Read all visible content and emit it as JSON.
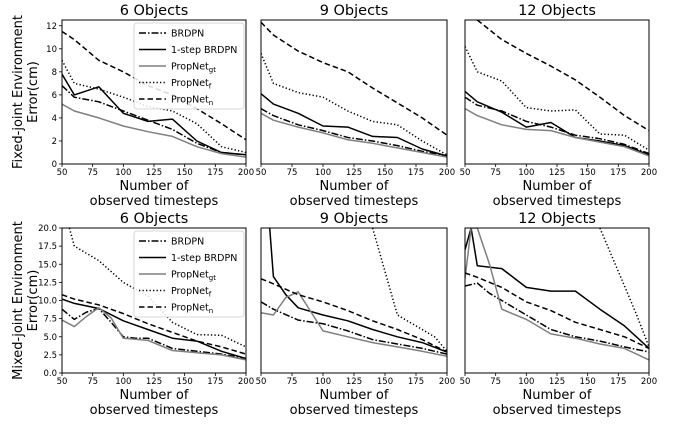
{
  "chart_data": [
    {
      "type": "line",
      "title": "6 Objects",
      "xlabel": "Number of\nobserved timesteps",
      "ylabel": "Fixed-joint Environment\nError(cm)",
      "xlim": [
        50,
        200
      ],
      "ylim": [
        0,
        12.5
      ],
      "xticks": [
        "50",
        "75",
        "100",
        "125",
        "150",
        "175",
        "200"
      ],
      "yticks": [
        "0",
        "2",
        "4",
        "6",
        "8",
        "10",
        "12"
      ],
      "legend": "top-right",
      "series": [
        {
          "name": "BRDPN",
          "x": [
            50,
            60,
            80,
            100,
            120,
            140,
            160,
            180,
            200
          ],
          "y": [
            6.8,
            5.8,
            5.4,
            4.6,
            3.8,
            3.0,
            1.8,
            1.0,
            0.8
          ]
        },
        {
          "name": "1-step BRDPN",
          "x": [
            50,
            60,
            80,
            100,
            120,
            140,
            160,
            180,
            200
          ],
          "y": [
            7.8,
            6.0,
            6.7,
            4.4,
            3.7,
            3.9,
            2.0,
            1.0,
            0.8
          ]
        },
        {
          "name": "PropNet_gt",
          "x": [
            50,
            60,
            80,
            100,
            120,
            140,
            160,
            180,
            200
          ],
          "y": [
            5.2,
            4.6,
            4.0,
            3.3,
            2.8,
            2.4,
            1.5,
            0.9,
            0.6
          ]
        },
        {
          "name": "PropNet_f",
          "x": [
            50,
            60,
            80,
            100,
            120,
            140,
            160,
            180,
            200
          ],
          "y": [
            9.0,
            7.0,
            6.5,
            5.8,
            5.0,
            4.6,
            3.5,
            1.5,
            1.0
          ]
        },
        {
          "name": "PropNet_n",
          "x": [
            50,
            60,
            80,
            100,
            120,
            140,
            160,
            180,
            200
          ],
          "y": [
            11.5,
            10.8,
            9.0,
            8.0,
            6.8,
            6.0,
            4.8,
            3.5,
            2.1
          ]
        }
      ]
    },
    {
      "type": "line",
      "title": "9 Objects",
      "xlabel": "Number of\nobserved timesteps",
      "xlim": [
        50,
        200
      ],
      "ylim": [
        0,
        12.5
      ],
      "xticks": [
        "50",
        "75",
        "100",
        "125",
        "150",
        "175",
        "200"
      ],
      "series": [
        {
          "name": "BRDPN",
          "x": [
            50,
            60,
            80,
            100,
            120,
            140,
            160,
            180,
            200
          ],
          "y": [
            4.8,
            4.2,
            3.4,
            2.9,
            2.3,
            2.0,
            1.6,
            1.1,
            0.7
          ]
        },
        {
          "name": "1-step BRDPN",
          "x": [
            50,
            60,
            80,
            100,
            120,
            140,
            160,
            180,
            200
          ],
          "y": [
            6.1,
            5.2,
            4.4,
            3.3,
            3.2,
            2.4,
            2.3,
            1.3,
            0.7
          ]
        },
        {
          "name": "PropNet_gt",
          "x": [
            50,
            60,
            80,
            100,
            120,
            140,
            160,
            180,
            200
          ],
          "y": [
            4.4,
            3.8,
            3.2,
            2.7,
            2.1,
            1.8,
            1.4,
            1.0,
            0.6
          ]
        },
        {
          "name": "PropNet_f",
          "x": [
            50,
            60,
            80,
            100,
            120,
            140,
            160,
            180,
            200
          ],
          "y": [
            9.6,
            7.0,
            6.2,
            5.8,
            4.6,
            3.7,
            3.4,
            2.0,
            0.8
          ]
        },
        {
          "name": "PropNet_n",
          "x": [
            50,
            60,
            80,
            100,
            120,
            140,
            160,
            180,
            200
          ],
          "y": [
            12.3,
            11.2,
            9.8,
            8.8,
            8.0,
            6.6,
            5.3,
            4.0,
            2.5
          ]
        }
      ]
    },
    {
      "type": "line",
      "title": "12 Objects",
      "xlabel": "Number of\nobserved timesteps",
      "xlim": [
        50,
        200
      ],
      "ylim": [
        0,
        12.5
      ],
      "xticks": [
        "50",
        "75",
        "100",
        "125",
        "150",
        "175",
        "200"
      ],
      "series": [
        {
          "name": "BRDPN",
          "x": [
            50,
            60,
            80,
            100,
            120,
            140,
            160,
            180,
            200
          ],
          "y": [
            5.8,
            5.1,
            4.6,
            3.7,
            3.2,
            2.5,
            2.2,
            1.7,
            0.9
          ]
        },
        {
          "name": "1-step BRDPN",
          "x": [
            50,
            60,
            80,
            100,
            120,
            140,
            160,
            180,
            200
          ],
          "y": [
            6.3,
            5.4,
            4.5,
            3.2,
            3.6,
            2.3,
            2.0,
            1.6,
            0.8
          ]
        },
        {
          "name": "PropNet_gt",
          "x": [
            50,
            60,
            80,
            100,
            120,
            140,
            160,
            180,
            200
          ],
          "y": [
            4.8,
            4.2,
            3.4,
            3.0,
            2.9,
            2.3,
            1.9,
            1.5,
            0.7
          ]
        },
        {
          "name": "PropNet_f",
          "x": [
            50,
            60,
            80,
            100,
            120,
            140,
            160,
            180,
            200
          ],
          "y": [
            10.2,
            8.0,
            7.2,
            4.9,
            4.6,
            4.7,
            2.6,
            2.5,
            1.2
          ]
        },
        {
          "name": "PropNet_n",
          "x": [
            60,
            80,
            100,
            120,
            140,
            160,
            180,
            200
          ],
          "y": [
            12.5,
            10.8,
            9.6,
            8.5,
            7.3,
            5.8,
            4.2,
            2.9
          ]
        }
      ]
    },
    {
      "type": "line",
      "title": "6 Objects",
      "xlabel": "Number of\nobserved timesteps",
      "ylabel": "Mixed-joint Environment\nError(cm)",
      "xlim": [
        50,
        200
      ],
      "ylim": [
        0,
        20
      ],
      "xticks": [
        "50",
        "75",
        "100",
        "125",
        "150",
        "175",
        "200"
      ],
      "yticks": [
        "0.0",
        "2.5",
        "5.0",
        "7.5",
        "10.0",
        "12.5",
        "15.0",
        "17.5",
        "20.0"
      ],
      "legend": "top-right",
      "series": [
        {
          "name": "BRDPN",
          "x": [
            50,
            60,
            70,
            80,
            90,
            100,
            110,
            120,
            140,
            160,
            180,
            200
          ],
          "y": [
            8.8,
            7.4,
            8.4,
            8.9,
            7.0,
            5.0,
            4.8,
            4.8,
            3.4,
            3.0,
            2.6,
            2.0
          ]
        },
        {
          "name": "1-step BRDPN",
          "x": [
            50,
            60,
            80,
            100,
            120,
            140,
            160,
            180,
            200
          ],
          "y": [
            10.2,
            9.6,
            8.9,
            7.2,
            6.0,
            4.8,
            4.4,
            3.0,
            2.0
          ]
        },
        {
          "name": "PropNet_gt",
          "x": [
            50,
            60,
            70,
            80,
            90,
            100,
            120,
            140,
            160,
            180,
            200
          ],
          "y": [
            7.3,
            6.4,
            7.8,
            9.0,
            7.6,
            4.8,
            4.5,
            3.1,
            2.8,
            2.5,
            1.8
          ]
        },
        {
          "name": "PropNet_f",
          "x": [
            56,
            60,
            80,
            100,
            120,
            140,
            160,
            180,
            200
          ],
          "y": [
            20.0,
            17.5,
            15.5,
            12.5,
            10.6,
            7.0,
            5.3,
            5.2,
            3.6
          ]
        },
        {
          "name": "PropNet_n",
          "x": [
            50,
            60,
            80,
            100,
            120,
            140,
            160,
            180,
            200
          ],
          "y": [
            10.8,
            10.2,
            9.4,
            8.2,
            6.8,
            5.6,
            4.4,
            3.6,
            2.6
          ]
        }
      ]
    },
    {
      "type": "line",
      "title": "9 Objects",
      "xlabel": "Number of\nobserved timesteps",
      "xlim": [
        50,
        200
      ],
      "ylim": [
        0,
        20
      ],
      "xticks": [
        "50",
        "75",
        "100",
        "125",
        "150",
        "175",
        "200"
      ],
      "series": [
        {
          "name": "BRDPN",
          "x": [
            50,
            60,
            80,
            100,
            120,
            140,
            160,
            180,
            200
          ],
          "y": [
            9.8,
            8.8,
            7.3,
            6.8,
            5.8,
            4.6,
            4.0,
            3.4,
            2.6
          ]
        },
        {
          "name": "1-step BRDPN",
          "x": [
            57,
            60,
            70,
            80,
            100,
            120,
            140,
            160,
            180,
            200
          ],
          "y": [
            20.0,
            13.3,
            10.8,
            9.0,
            8.0,
            7.2,
            6.0,
            5.0,
            4.2,
            2.9
          ]
        },
        {
          "name": "PropNet_gt",
          "x": [
            50,
            60,
            70,
            80,
            90,
            100,
            120,
            140,
            160,
            180,
            200
          ],
          "y": [
            8.3,
            8.0,
            10.4,
            11.2,
            8.5,
            5.8,
            5.0,
            4.2,
            3.6,
            3.0,
            2.3
          ]
        },
        {
          "name": "PropNet_f",
          "x": [
            140,
            150,
            160,
            170,
            180,
            190,
            200
          ],
          "y": [
            20.0,
            14.0,
            8.0,
            7.0,
            6.0,
            5.0,
            3.0
          ]
        },
        {
          "name": "PropNet_n",
          "x": [
            50,
            60,
            80,
            100,
            120,
            140,
            160,
            180,
            200
          ],
          "y": [
            13.0,
            12.3,
            10.8,
            9.8,
            8.6,
            7.2,
            6.0,
            4.6,
            2.9
          ]
        }
      ]
    },
    {
      "type": "line",
      "title": "12 Objects",
      "xlabel": "Number of\nobserved timesteps",
      "xlim": [
        50,
        200
      ],
      "ylim": [
        0,
        20
      ],
      "xticks": [
        "50",
        "75",
        "100",
        "125",
        "150",
        "175",
        "200"
      ],
      "series": [
        {
          "name": "BRDPN",
          "x": [
            50,
            60,
            70,
            80,
            100,
            120,
            140,
            160,
            180,
            200
          ],
          "y": [
            12.0,
            12.4,
            11.0,
            10.0,
            8.0,
            6.0,
            5.0,
            4.4,
            3.6,
            2.9
          ]
        },
        {
          "name": "1-step BRDPN",
          "x": [
            50,
            55,
            60,
            80,
            100,
            120,
            140,
            160,
            180,
            200
          ],
          "y": [
            17.0,
            20.0,
            14.8,
            14.4,
            11.8,
            11.3,
            11.3,
            8.8,
            6.5,
            3.4
          ]
        },
        {
          "name": "PropNet_gt",
          "x": [
            50,
            55,
            60,
            70,
            80,
            100,
            120,
            140,
            160,
            180,
            200
          ],
          "y": [
            13.0,
            20.0,
            20.0,
            15.0,
            8.8,
            7.4,
            5.4,
            4.8,
            4.0,
            3.4,
            1.8
          ]
        },
        {
          "name": "PropNet_f",
          "x": [
            160,
            170,
            180,
            190,
            200
          ],
          "y": [
            20.0,
            16.0,
            12.0,
            8.0,
            3.6
          ]
        },
        {
          "name": "PropNet_n",
          "x": [
            50,
            60,
            80,
            100,
            120,
            140,
            160,
            180,
            200
          ],
          "y": [
            13.8,
            13.2,
            11.8,
            9.8,
            8.6,
            7.0,
            6.0,
            5.0,
            3.4
          ]
        }
      ]
    }
  ]
}
